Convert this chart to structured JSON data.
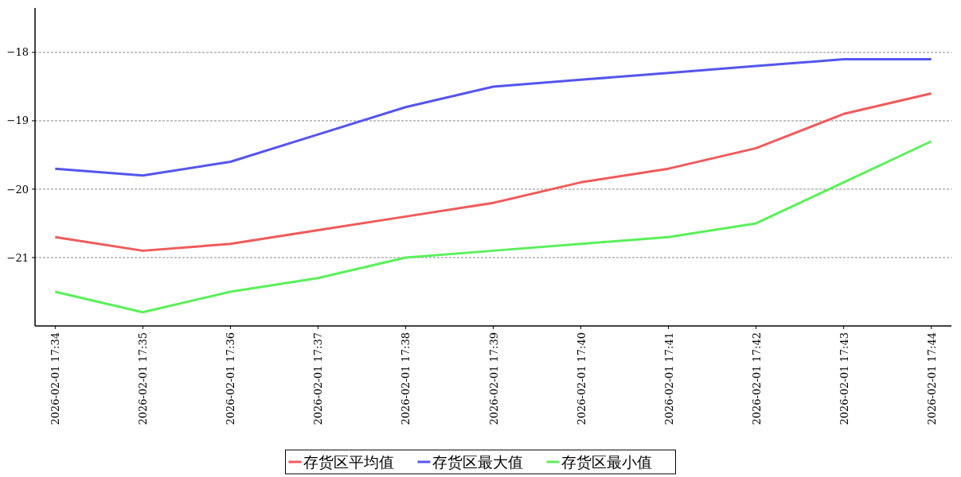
{
  "chart_data": {
    "type": "line",
    "categories": [
      "2026-02-01 17:34",
      "2026-02-01 17:35",
      "2026-02-01 17:36",
      "2026-02-01 17:37",
      "2026-02-01 17:38",
      "2026-02-01 17:39",
      "2026-02-01 17:40",
      "2026-02-01 17:41",
      "2026-02-01 17:42",
      "2026-02-01 17:43",
      "2026-02-01 17:44"
    ],
    "series": [
      {
        "name": "存货区平均值",
        "color": "#f05a5a",
        "values": [
          -20.7,
          -20.9,
          -20.8,
          -20.6,
          -20.4,
          -20.2,
          -19.9,
          -19.7,
          -19.4,
          -18.9,
          -18.6
        ]
      },
      {
        "name": "存货区最大值",
        "color": "#5555ee",
        "values": [
          -19.7,
          -19.8,
          -19.6,
          -19.2,
          -18.8,
          -18.5,
          -18.4,
          -18.3,
          -18.2,
          -18.1,
          -18.1
        ]
      },
      {
        "name": "存货区最小值",
        "color": "#5af05a",
        "values": [
          -21.5,
          -21.8,
          -21.5,
          -21.3,
          -21.0,
          -20.9,
          -20.8,
          -20.7,
          -20.5,
          -19.9,
          -19.3
        ]
      }
    ],
    "ylim": [
      -22,
      -17.35
    ],
    "yticks": [
      -21,
      -20,
      -19,
      -18
    ],
    "grid": "y",
    "legend": "bottom",
    "marker": "none",
    "line_style": "solid"
  }
}
